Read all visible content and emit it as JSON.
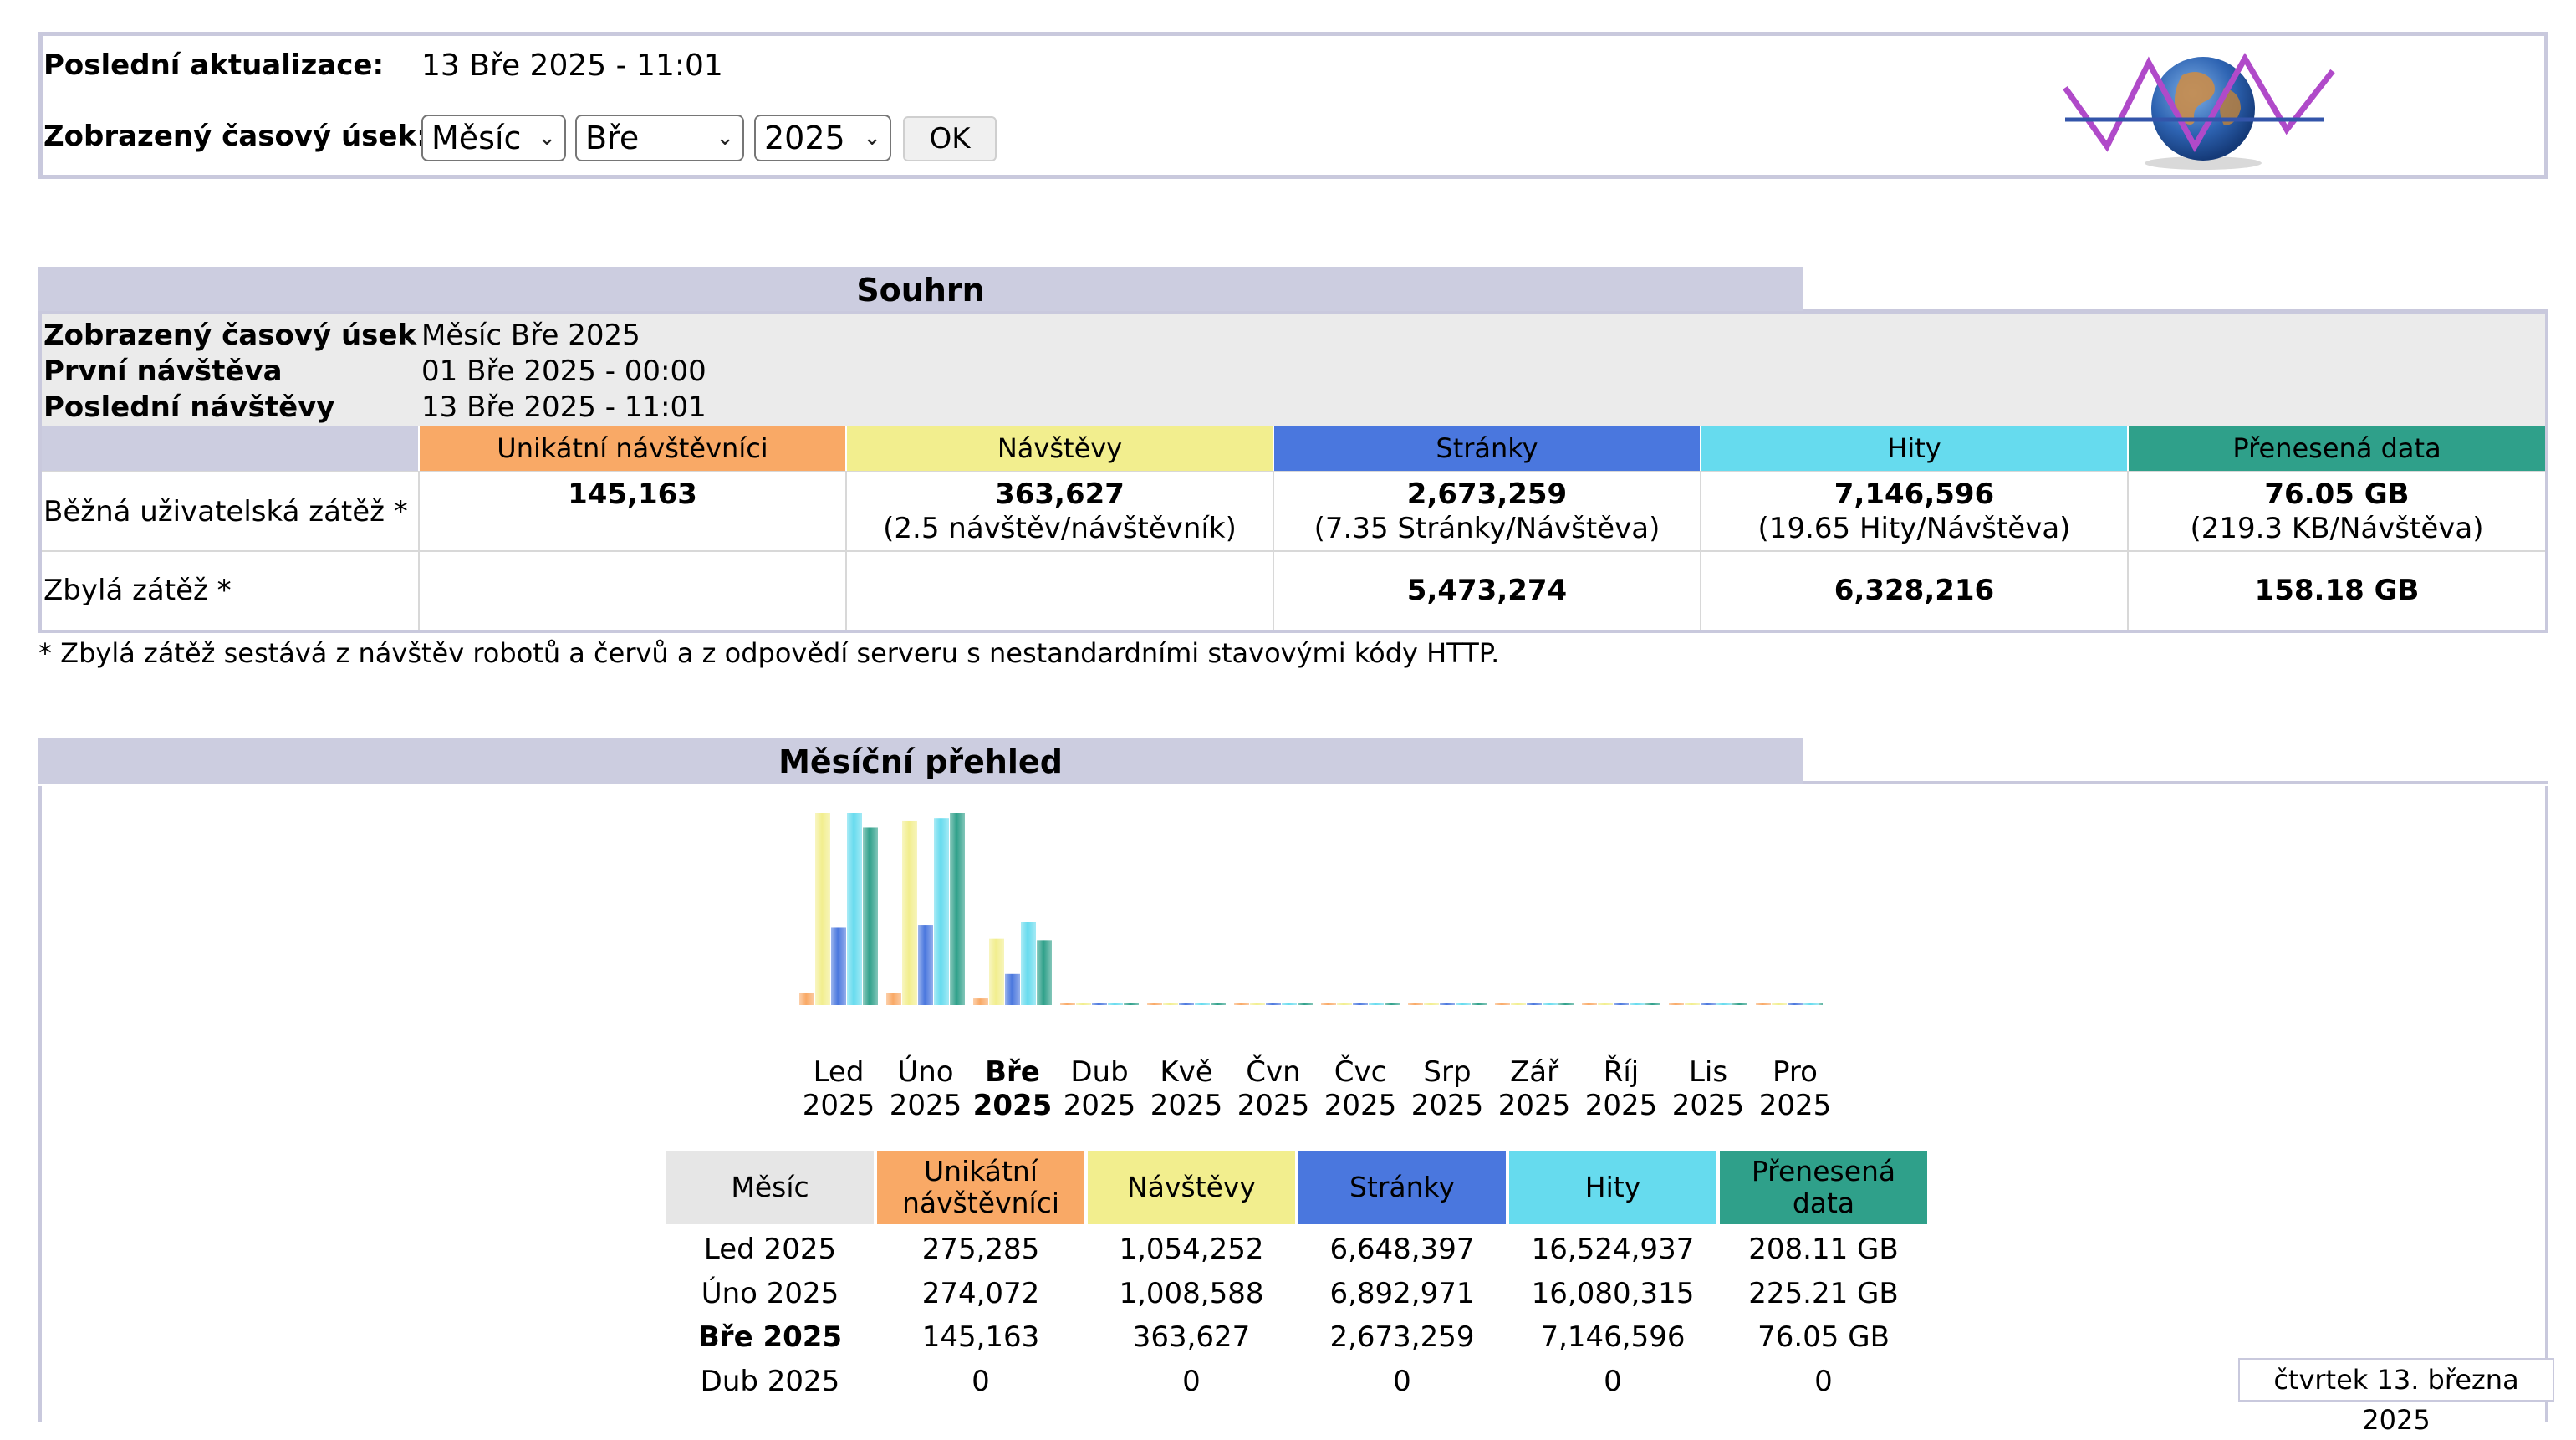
{
  "header": {
    "last_update_label": "Poslední aktualizace:",
    "last_update_value": "13 Bře 2025 - 11:01",
    "period_label": "Zobrazený časový úsek:",
    "period_type": "Měsíc",
    "period_month": "Bře",
    "period_year": "2025",
    "ok_label": "OK"
  },
  "summary": {
    "title": "Souhrn",
    "info": [
      {
        "label": "Zobrazený časový úsek",
        "value": "Měsíc Bře 2025"
      },
      {
        "label": "První návštěva",
        "value": "01 Bře 2025 - 00:00"
      },
      {
        "label": "Poslední návštěvy",
        "value": "13 Bře 2025 - 11:01"
      }
    ],
    "columns": [
      "Unikátní návštěvníci",
      "Návštěvy",
      "Stránky",
      "Hity",
      "Přenesená data"
    ],
    "column_colors": [
      "#f9a966",
      "#f2ee8e",
      "#4a77de",
      "#66dbee",
      "#2fa08a"
    ],
    "row1_label": "Běžná uživatelská zátěž *",
    "row1_values": [
      "145,163",
      "363,627",
      "2,673,259",
      "7,146,596",
      "76.05 GB"
    ],
    "row1_sub": [
      "",
      "(2.5 návštěv/návštěvník)",
      "(7.35 Stránky/Návštěva)",
      "(19.65 Hity/Návštěva)",
      "(219.3 KB/Návštěva)"
    ],
    "row2_label": "Zbylá zátěž *",
    "row2_values": [
      "",
      "",
      "5,473,274",
      "6,328,216",
      "158.18 GB"
    ],
    "footnote": "* Zbylá zátěž sestává z návštěv robotů a červů a z odpovědí serveru s nestandardními stavovými kódy HTTP."
  },
  "monthly": {
    "title": "Měsíční přehled",
    "chart_data": {
      "type": "bar",
      "categories": [
        "Led 2025",
        "Úno 2025",
        "Bře 2025",
        "Dub 2025",
        "Kvě 2025",
        "Čvn 2025",
        "Čvc 2025",
        "Srp 2025",
        "Zář 2025",
        "Říj 2025",
        "Lis 2025",
        "Pro 2025"
      ],
      "month_names": [
        "Led",
        "Úno",
        "Bře",
        "Dub",
        "Kvě",
        "Čvn",
        "Čvc",
        "Srp",
        "Zář",
        "Říj",
        "Lis",
        "Pro"
      ],
      "year": "2025",
      "current_index": 2,
      "series": [
        {
          "name": "Unikátní návštěvníci",
          "color": "#f9a966",
          "values": [
            275285,
            274072,
            145163,
            0,
            0,
            0,
            0,
            0,
            0,
            0,
            0,
            0
          ]
        },
        {
          "name": "Návštěvy",
          "color": "#f2ee8e",
          "values": [
            1054252,
            1008588,
            363627,
            0,
            0,
            0,
            0,
            0,
            0,
            0,
            0,
            0
          ]
        },
        {
          "name": "Stránky",
          "color": "#4a77de",
          "values": [
            6648397,
            6892971,
            2673259,
            0,
            0,
            0,
            0,
            0,
            0,
            0,
            0,
            0
          ]
        },
        {
          "name": "Hity",
          "color": "#66dbee",
          "values": [
            16524937,
            16080315,
            7146596,
            0,
            0,
            0,
            0,
            0,
            0,
            0,
            0,
            0
          ]
        },
        {
          "name": "Přenesená data",
          "color": "#2fa08a",
          "values": [
            208.11,
            225.21,
            76.05,
            0,
            0,
            0,
            0,
            0,
            0,
            0,
            0,
            0
          ]
        }
      ]
    },
    "table": {
      "headers": [
        "Měsíc",
        "Unikátní návštěvníci",
        "Návštěvy",
        "Stránky",
        "Hity",
        "Přenesená data"
      ],
      "rows": [
        [
          "Led 2025",
          "275,285",
          "1,054,252",
          "6,648,397",
          "16,524,937",
          "208.11 GB"
        ],
        [
          "Úno 2025",
          "274,072",
          "1,008,588",
          "6,892,971",
          "16,080,315",
          "225.21 GB"
        ],
        [
          "Bře 2025",
          "145,163",
          "363,627",
          "2,673,259",
          "7,146,596",
          "76.05 GB"
        ],
        [
          "Dub 2025",
          "0",
          "0",
          "0",
          "0",
          "0"
        ]
      ]
    }
  },
  "status_date": "čtvrtek 13. března 2025"
}
